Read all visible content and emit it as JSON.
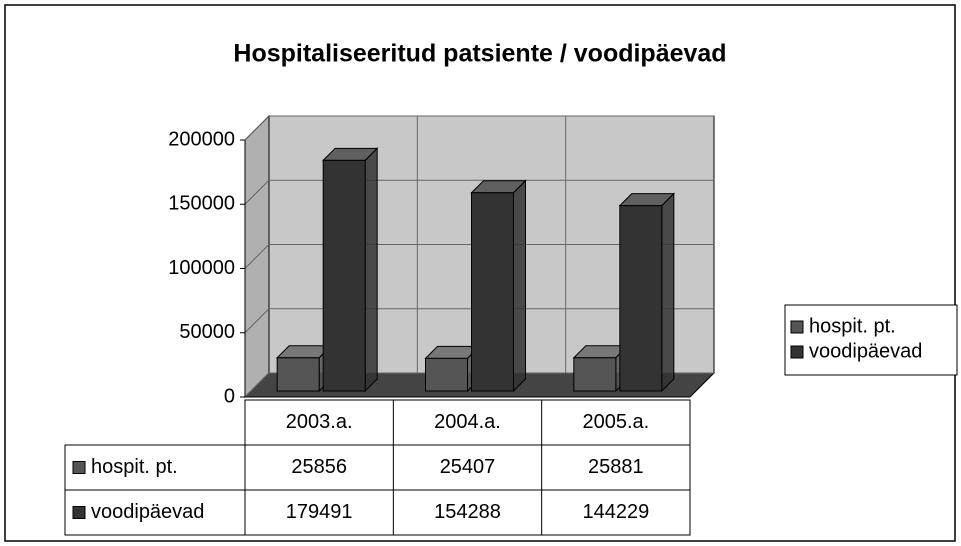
{
  "chart_data": {
    "type": "bar3d",
    "title": "Hospitaliseeritud patsiente / voodipäevad",
    "categories": [
      "2003.a.",
      "2004.a.",
      "2005.a."
    ],
    "series": [
      {
        "name": "hospit. pt.",
        "color": "#555555",
        "values": [
          25856,
          25407,
          25881
        ]
      },
      {
        "name": "voodipäevad",
        "color": "#333333",
        "values": [
          179491,
          154288,
          144229
        ]
      }
    ],
    "ylim": [
      0,
      200000
    ],
    "yticks": [
      0,
      50000,
      100000,
      150000,
      200000
    ],
    "grid": true,
    "legend": "right",
    "data_table": true
  }
}
